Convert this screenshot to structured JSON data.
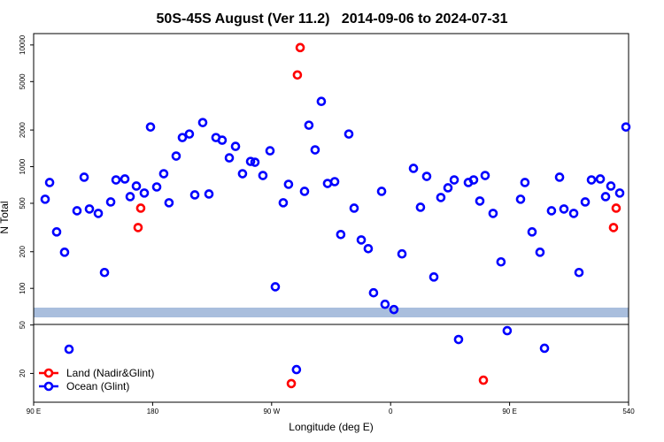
{
  "chart_data": {
    "type": "scatter",
    "title": "50S-45S August (Ver 11.2)   2014-09-06 to 2024-07-31",
    "x_label": "Longitude (deg E)",
    "y_label": "N Total",
    "xlim": [
      90,
      540
    ],
    "xticks": [
      {
        "value": 90,
        "label": "90 E"
      },
      180,
      {
        "value": 270,
        "label": "90 W"
      },
      {
        "value": 360,
        "label": "0"
      },
      {
        "value": 450,
        "label": "90 E"
      },
      540
    ],
    "ylim": [
      11.6,
      12400
    ],
    "ylog": true,
    "yticks": [
      20,
      50,
      100,
      200,
      500,
      1000,
      2000,
      5000,
      10000
    ],
    "legend": "bottom-left",
    "series": [
      {
        "name": "Land (Nadir&Glint)",
        "color": "#ff0000",
        "x": [
          171.0,
          169.0,
          291.6,
          289.5,
          284.9,
          430.2,
          530.6,
          528.6
        ],
        "values": [
          456,
          316,
          9512,
          5670,
          16.5,
          17.6,
          456,
          316
        ]
      },
      {
        "name": "Ocean (Glint)",
        "color": "#0000ff",
        "x": [
          98.7,
          102.1,
          107.4,
          113.4,
          116.8,
          122.8,
          128.2,
          132.2,
          138.9,
          143.6,
          148.3,
          152.3,
          159.0,
          163.0,
          167.7,
          173.7,
          178.4,
          183.1,
          188.4,
          192.4,
          197.8,
          202.5,
          207.8,
          211.9,
          217.9,
          222.6,
          227.9,
          232.6,
          238.0,
          242.7,
          248.0,
          254.1,
          257.4,
          263.4,
          268.8,
          272.8,
          278.8,
          282.8,
          288.8,
          294.9,
          298.2,
          302.9,
          307.6,
          312.3,
          317.7,
          322.3,
          328.4,
          332.4,
          337.8,
          343.1,
          347.1,
          353.2,
          355.8,
          362.5,
          368.6,
          377.3,
          382.6,
          387.3,
          392.7,
          398.0,
          403.4,
          408.1,
          411.4,
          418.8,
          422.8,
          427.5,
          431.5,
          437.5,
          443.5,
          448.2,
          458.3,
          461.6,
          467.0,
          473.0,
          476.4,
          481.7,
          487.8,
          491.1,
          498.5,
          502.5,
          507.2,
          511.9,
          518.6,
          522.6,
          526.6,
          533.3,
          538.0
        ],
        "values": [
          540,
          741,
          291,
          198,
          31.6,
          434,
          819,
          449,
          413,
          135,
          513,
          778,
          792,
          567,
          693,
          607,
          2118,
          681,
          875,
          505,
          1222,
          1734,
          1854,
          586,
          2303,
          596,
          1734,
          1650,
          1181,
          1468,
          875,
          1104,
          1087,
          846,
          1350,
          103,
          505,
          716,
          21.5,
          627,
          2191,
          1374,
          3436,
          728,
          753,
          277,
          1854,
          456,
          250,
          212,
          92,
          627,
          74,
          67,
          192,
          968,
          464,
          832,
          124,
          558,
          670,
          778,
          38,
          741,
          778,
          522,
          846,
          413,
          165,
          44.9,
          540,
          741,
          291,
          198,
          32.2,
          434,
          819,
          449,
          413,
          135,
          513,
          778,
          792,
          567,
          693,
          607,
          2118
        ]
      }
    ]
  }
}
